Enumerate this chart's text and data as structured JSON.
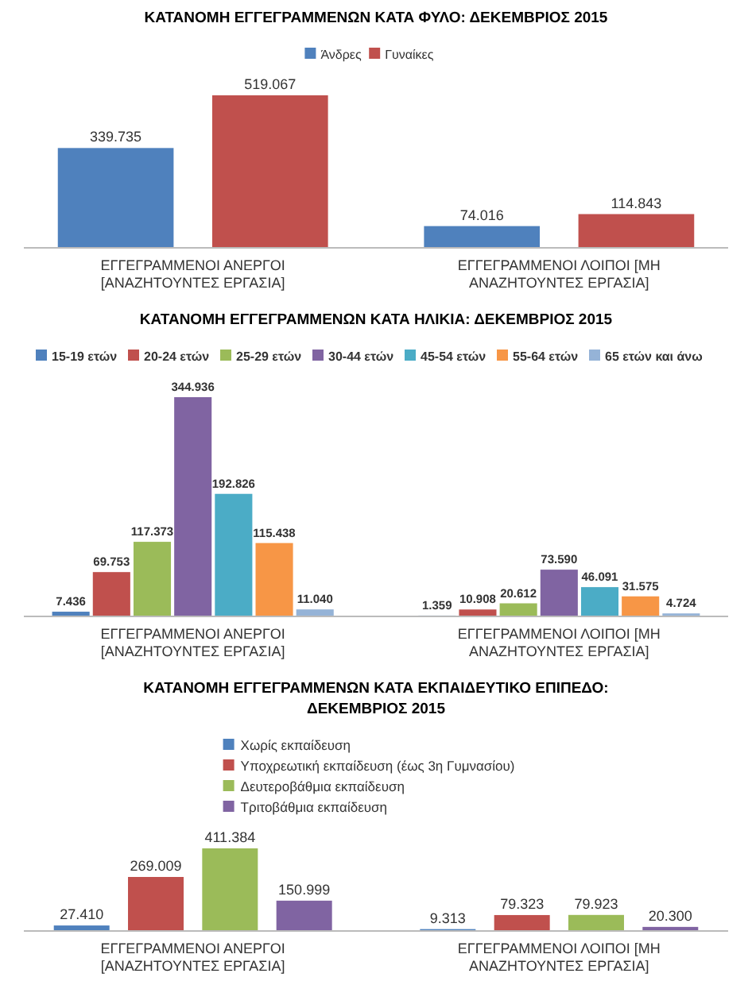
{
  "chart_data": [
    {
      "type": "bar",
      "title": "ΚΑΤΑΝΟΜΗ ΕΓΓΕΓΡΑΜΜΕΝΩΝ ΚΑΤΑ ΦΥΛΟ: ΔΕΚΕΜΒΡΙΟΣ 2015",
      "categories": [
        "ΕΓΓΕΓΡΑΜΜΕΝΟΙ ΑΝΕΡΓΟΙ [ΑΝΑΖΗΤΟΥΝΤΕΣ ΕΡΓΑΣΙΑ]",
        "ΕΓΓΕΓΡΑΜΜΕΝΟΙ ΛΟΙΠΟΙ [ΜΗ ΑΝΑΖΗΤΟΥΝΤΕΣ ΕΡΓΑΣΙΑ]"
      ],
      "legend": "top",
      "series": [
        {
          "name": "Άνδρες",
          "color": "#4f81bd",
          "values": [
            339735,
            74016
          ],
          "value_labels": [
            "339.735",
            "74.016"
          ]
        },
        {
          "name": "Γυναίκες",
          "color": "#c0504d",
          "values": [
            519067,
            114843
          ],
          "value_labels": [
            "519.067",
            "114.843"
          ]
        }
      ]
    },
    {
      "type": "bar",
      "title": "ΚΑΤΑΝΟΜΗ ΕΓΓΕΓΡΑΜΜΕΝΩΝ ΚΑΤΑ ΗΛΙΚΙΑ: ΔΕΚΕΜΒΡΙΟΣ 2015",
      "categories": [
        "ΕΓΓΕΓΡΑΜΜΕΝΟΙ ΑΝΕΡΓΟΙ [ΑΝΑΖΗΤΟΥΝΤΕΣ ΕΡΓΑΣΙΑ]",
        "ΕΓΓΕΓΡΑΜΜΕΝΟΙ ΛΟΙΠΟΙ [ΜΗ ΑΝΑΖΗΤΟΥΝΤΕΣ ΕΡΓΑΣΙΑ]"
      ],
      "legend": "top",
      "series": [
        {
          "name": "15-19 ετών",
          "color": "#4f81bd",
          "values": [
            7436,
            1359
          ],
          "value_labels": [
            "7.436",
            "1.359"
          ]
        },
        {
          "name": "20-24 ετών",
          "color": "#c0504d",
          "values": [
            69753,
            10908
          ],
          "value_labels": [
            "69.753",
            "10.908"
          ]
        },
        {
          "name": "25-29 ετών",
          "color": "#9bbb59",
          "values": [
            117373,
            20612
          ],
          "value_labels": [
            "117.373",
            "20.612"
          ]
        },
        {
          "name": "30-44 ετών",
          "color": "#8064a2",
          "values": [
            344936,
            73590
          ],
          "value_labels": [
            "344.936",
            "73.590"
          ]
        },
        {
          "name": "45-54 ετών",
          "color": "#4bacc6",
          "values": [
            192826,
            46091
          ],
          "value_labels": [
            "192.826",
            "46.091"
          ]
        },
        {
          "name": "55-64 ετών",
          "color": "#f79646",
          "values": [
            115438,
            31575
          ],
          "value_labels": [
            "115.438",
            "31.575"
          ]
        },
        {
          "name": "65 ετών και άνω",
          "color": "#95b3d7",
          "values": [
            11040,
            4724
          ],
          "value_labels": [
            "11.040",
            "4.724"
          ]
        }
      ]
    },
    {
      "type": "bar",
      "title": "ΚΑΤΑΝΟΜΗ ΕΓΓΕΓΡΑΜΜΕΝΩΝ ΚΑΤΑ ΕΚΠΑΙΔΕΥΤΙΚΟ ΕΠΙΠΕΔΟ: ΔΕΚΕΜΒΡΙΟΣ 2015",
      "categories": [
        "ΕΓΓΕΓΡΑΜΜΕΝΟΙ ΑΝΕΡΓΟΙ [ΑΝΑΖΗΤΟΥΝΤΕΣ ΕΡΓΑΣΙΑ]",
        "ΕΓΓΕΓΡΑΜΜΕΝΟΙ ΛΟΙΠΟΙ [ΜΗ ΑΝΑΖΗΤΟΥΝΤΕΣ ΕΡΓΑΣΙΑ]"
      ],
      "legend": "top",
      "series": [
        {
          "name": "Χωρίς εκπαίδευση",
          "color": "#4f81bd",
          "values": [
            27410,
            9313
          ],
          "value_labels": [
            "27.410",
            "9.313"
          ]
        },
        {
          "name": "Υποχρεωτική εκπαίδευση (έως 3η Γυμνασίου)",
          "color": "#c0504d",
          "values": [
            269009,
            79323
          ],
          "value_labels": [
            "269.009",
            "79.323"
          ]
        },
        {
          "name": "Δευτεροβάθμια εκπαίδευση",
          "color": "#9bbb59",
          "values": [
            411384,
            79923
          ],
          "value_labels": [
            "411.384",
            "79.923"
          ]
        },
        {
          "name": "Τριτοβάθμια εκπαίδευση",
          "color": "#8064a2",
          "values": [
            150999,
            20300
          ],
          "value_labels": [
            "150.999",
            "20.300"
          ]
        }
      ]
    }
  ]
}
